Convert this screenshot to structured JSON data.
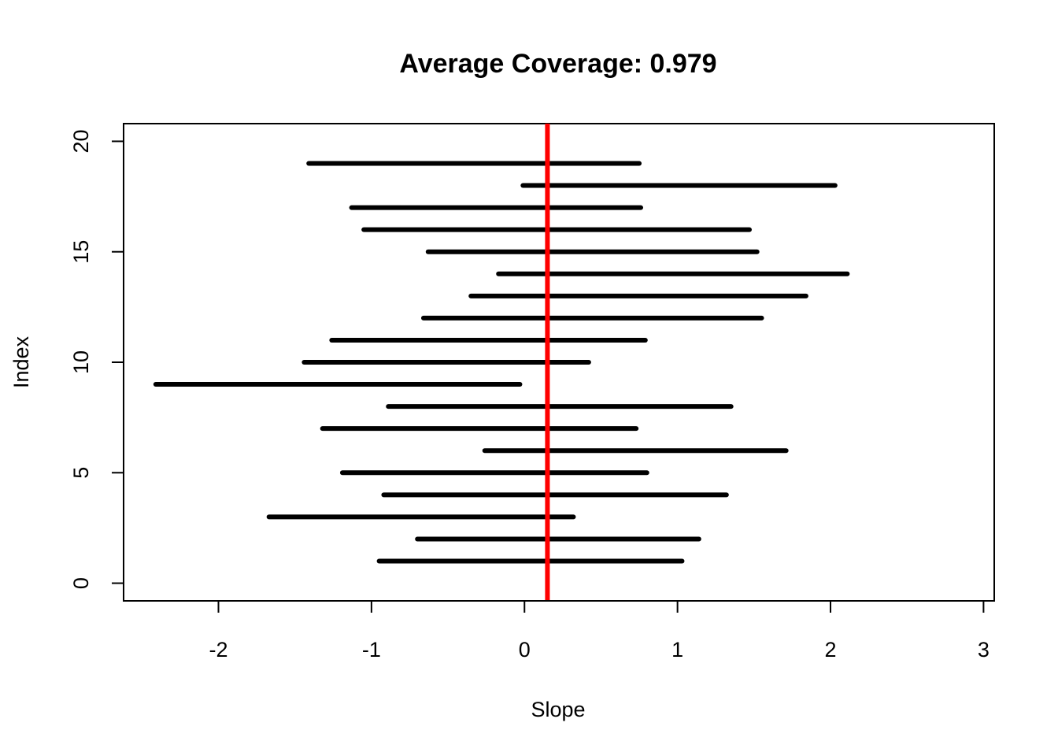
{
  "chart_data": {
    "type": "interval",
    "title": "Average Coverage: 0.979",
    "xlabel": "Slope",
    "ylabel": "Index",
    "xlim": [
      -2.62,
      3.07
    ],
    "ylim": [
      -0.8,
      20.8
    ],
    "xticks": [
      -2,
      -1,
      0,
      1,
      2,
      3
    ],
    "yticks": [
      0,
      5,
      10,
      15,
      20
    ],
    "reference_x": 0.15,
    "reference_color": "#ff0000",
    "interval_color": "#000000",
    "intervals": [
      {
        "index": 1,
        "low": -0.95,
        "high": 1.03
      },
      {
        "index": 2,
        "low": -0.7,
        "high": 1.14
      },
      {
        "index": 3,
        "low": -1.67,
        "high": 0.32
      },
      {
        "index": 4,
        "low": -0.92,
        "high": 1.32
      },
      {
        "index": 5,
        "low": -1.19,
        "high": 0.8
      },
      {
        "index": 6,
        "low": -0.26,
        "high": 1.71
      },
      {
        "index": 7,
        "low": -1.32,
        "high": 0.73
      },
      {
        "index": 8,
        "low": -0.89,
        "high": 1.35
      },
      {
        "index": 9,
        "low": -2.41,
        "high": -0.03
      },
      {
        "index": 10,
        "low": -1.44,
        "high": 0.42
      },
      {
        "index": 11,
        "low": -1.26,
        "high": 0.79
      },
      {
        "index": 12,
        "low": -0.66,
        "high": 1.55
      },
      {
        "index": 13,
        "low": -0.35,
        "high": 1.84
      },
      {
        "index": 14,
        "low": -0.17,
        "high": 2.11
      },
      {
        "index": 15,
        "low": -0.63,
        "high": 1.52
      },
      {
        "index": 16,
        "low": -1.05,
        "high": 1.47
      },
      {
        "index": 17,
        "low": -1.13,
        "high": 0.76
      },
      {
        "index": 18,
        "low": -0.01,
        "high": 2.03
      },
      {
        "index": 19,
        "low": -1.41,
        "high": 0.75
      }
    ],
    "grid": false,
    "legend": "none"
  }
}
